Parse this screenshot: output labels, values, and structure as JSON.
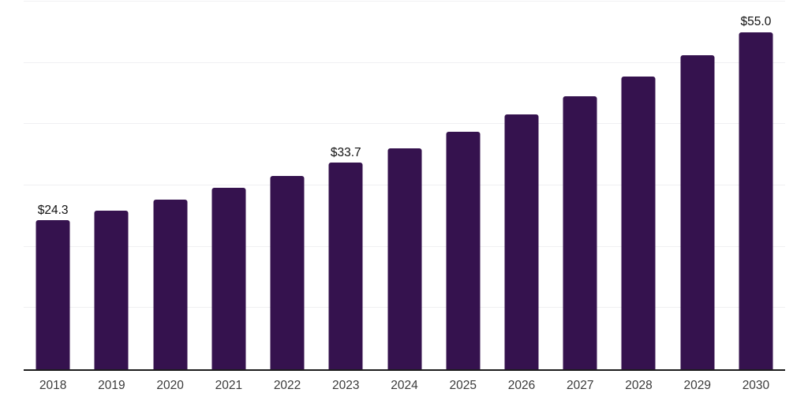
{
  "chart_data": {
    "type": "bar",
    "title": "",
    "xlabel": "",
    "ylabel": "",
    "categories": [
      "2018",
      "2019",
      "2020",
      "2021",
      "2022",
      "2023",
      "2024",
      "2025",
      "2026",
      "2027",
      "2028",
      "2029",
      "2030"
    ],
    "values": [
      24.3,
      25.9,
      27.7,
      29.6,
      31.5,
      33.7,
      36.1,
      38.8,
      41.6,
      44.6,
      47.8,
      51.3,
      55.0
    ],
    "value_labels": [
      "$24.3",
      null,
      null,
      null,
      null,
      "$33.7",
      null,
      null,
      null,
      null,
      null,
      null,
      "$55.0"
    ],
    "ylim": [
      0,
      60
    ],
    "gridline_step": 10,
    "grid": "horizontal-only",
    "legend": "none",
    "y_tick_labels_visible": false,
    "bar_color": "#35124E",
    "gridline_color": "#f0f0f2",
    "axis_line_color": "#1c1c1c",
    "tick_label_color": "#3a3a3a",
    "value_label_color": "#111111"
  }
}
